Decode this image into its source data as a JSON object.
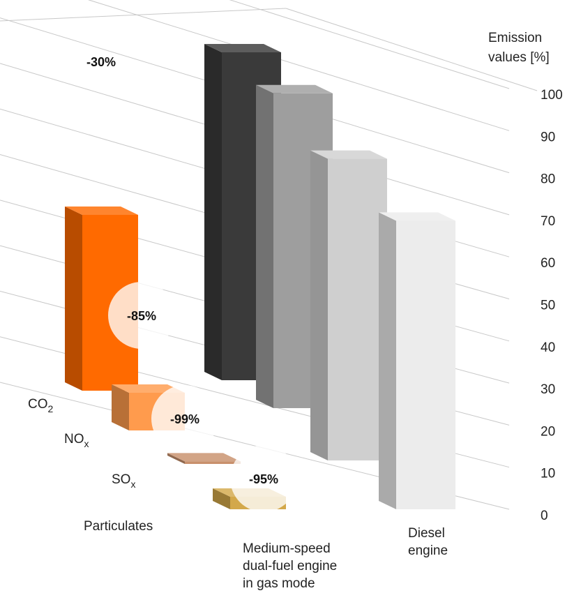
{
  "chart_data": {
    "type": "bar",
    "style": "3d-grouped-bar",
    "ylabel": "Emission values [%]",
    "ylabel_lines": [
      "Emission",
      "values [%]"
    ],
    "ylim": [
      0,
      100
    ],
    "yticks": [
      0,
      10,
      20,
      30,
      40,
      50,
      60,
      70,
      80,
      90,
      100
    ],
    "categories": [
      "CO2",
      "NOx",
      "SOx",
      "Particulates"
    ],
    "category_labels": [
      {
        "base": "CO",
        "sub": "2"
      },
      {
        "base": "NO",
        "sub": "x"
      },
      {
        "base": "SO",
        "sub": "x"
      },
      {
        "base": "Particulates",
        "sub": ""
      }
    ],
    "series": [
      {
        "name": "Medium-speed dual-fuel engine in gas mode",
        "name_lines": [
          "Medium-speed",
          "dual-fuel engine",
          "in gas mode"
        ],
        "values": [
          70,
          15,
          1,
          5
        ],
        "reductions": [
          "-30%",
          "-85%",
          "-99%",
          "-95%"
        ],
        "colors": [
          "#ff6a00",
          "#ff9b4d",
          "#c8906c",
          "#d3a84a"
        ]
      },
      {
        "name": "Diesel engine",
        "name_lines": [
          "Diesel",
          "engine"
        ],
        "values": [
          100,
          100,
          100,
          100
        ],
        "colors": [
          "#3a3a3a",
          "#9e9e9e",
          "#cfcfcf",
          "#ececec"
        ]
      }
    ],
    "grid": true,
    "legend": "none"
  }
}
